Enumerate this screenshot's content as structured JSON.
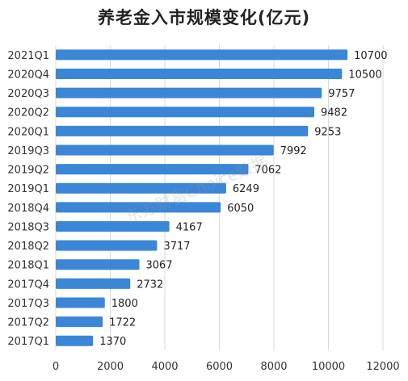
{
  "chart_data": {
    "type": "bar",
    "orientation": "horizontal",
    "title": "养老金入市规模变化(亿元)",
    "categories": [
      "2021Q1",
      "2020Q4",
      "2020Q3",
      "2020Q2",
      "2020Q1",
      "2019Q3",
      "2019Q2",
      "2019Q1",
      "2018Q4",
      "2018Q3",
      "2018Q2",
      "2018Q1",
      "2017Q4",
      "2017Q3",
      "2017Q2",
      "2017Q1"
    ],
    "values": [
      10700,
      10500,
      9757,
      9482,
      9253,
      7992,
      7062,
      6249,
      6050,
      4167,
      3717,
      3067,
      2732,
      1800,
      1722,
      1370
    ],
    "data_labels": [
      "10700",
      "10500",
      "9757",
      "9482",
      "9253",
      "7992",
      "7062",
      "6249",
      "6050",
      "4167",
      "3717",
      "3067",
      "2732",
      "1800",
      "1722",
      "1370"
    ],
    "x_ticks": [
      "0",
      "2000",
      "4000",
      "6000",
      "8000",
      "10000",
      "12000"
    ],
    "xlim": [
      0,
      12000
    ],
    "grid": true,
    "bar_color": "#3b86d6",
    "watermark": "东方财富Choice数据"
  }
}
